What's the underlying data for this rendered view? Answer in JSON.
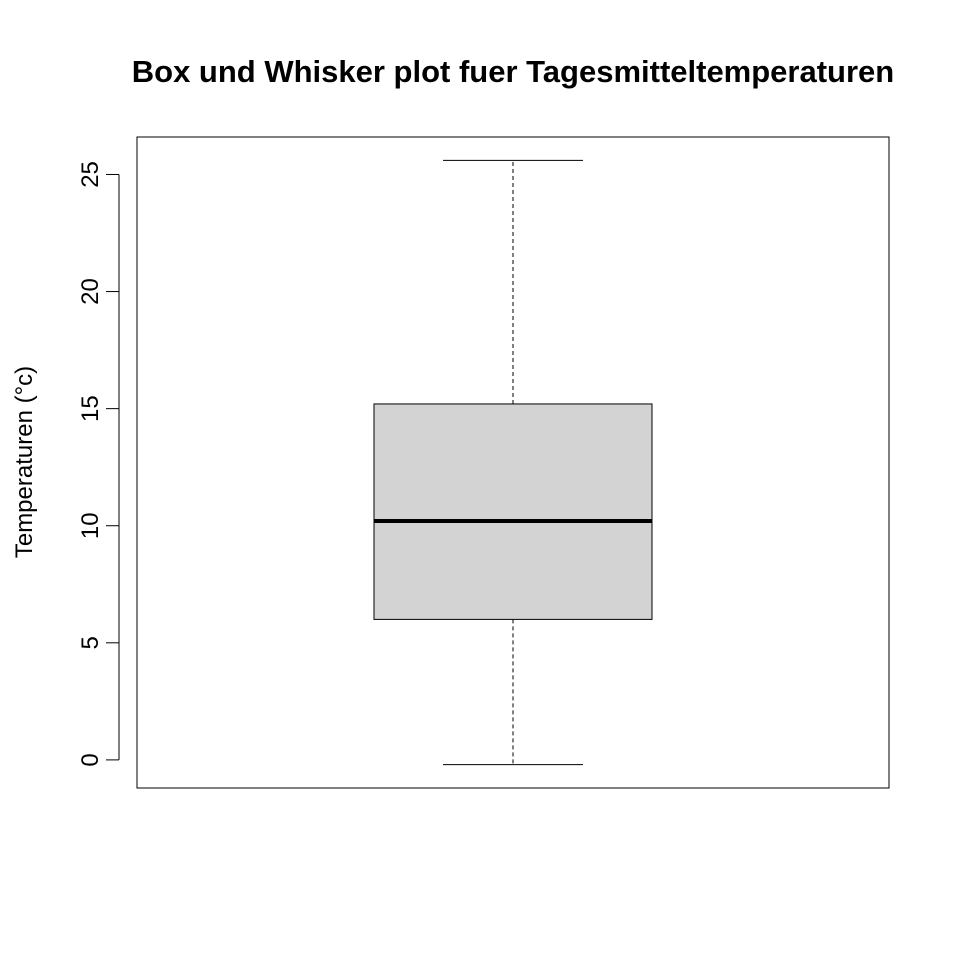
{
  "chart_data": {
    "type": "box",
    "title": "Box und Whisker plot fuer Tagesmitteltemperaturen",
    "xlabel": "",
    "ylabel": "Temperaturen (°c)",
    "ylim": [
      -1.2,
      26.6
    ],
    "yticks": [
      0,
      5,
      10,
      15,
      20,
      25
    ],
    "ytick_labels": [
      "0",
      "5",
      "10",
      "15",
      "20",
      "25"
    ],
    "grid": false,
    "box": {
      "min": -0.2,
      "q1": 6.0,
      "median": 10.2,
      "q3": 15.2,
      "max": 25.6
    },
    "colors": {
      "box_fill": "#d3d3d3",
      "line": "#000000"
    }
  }
}
